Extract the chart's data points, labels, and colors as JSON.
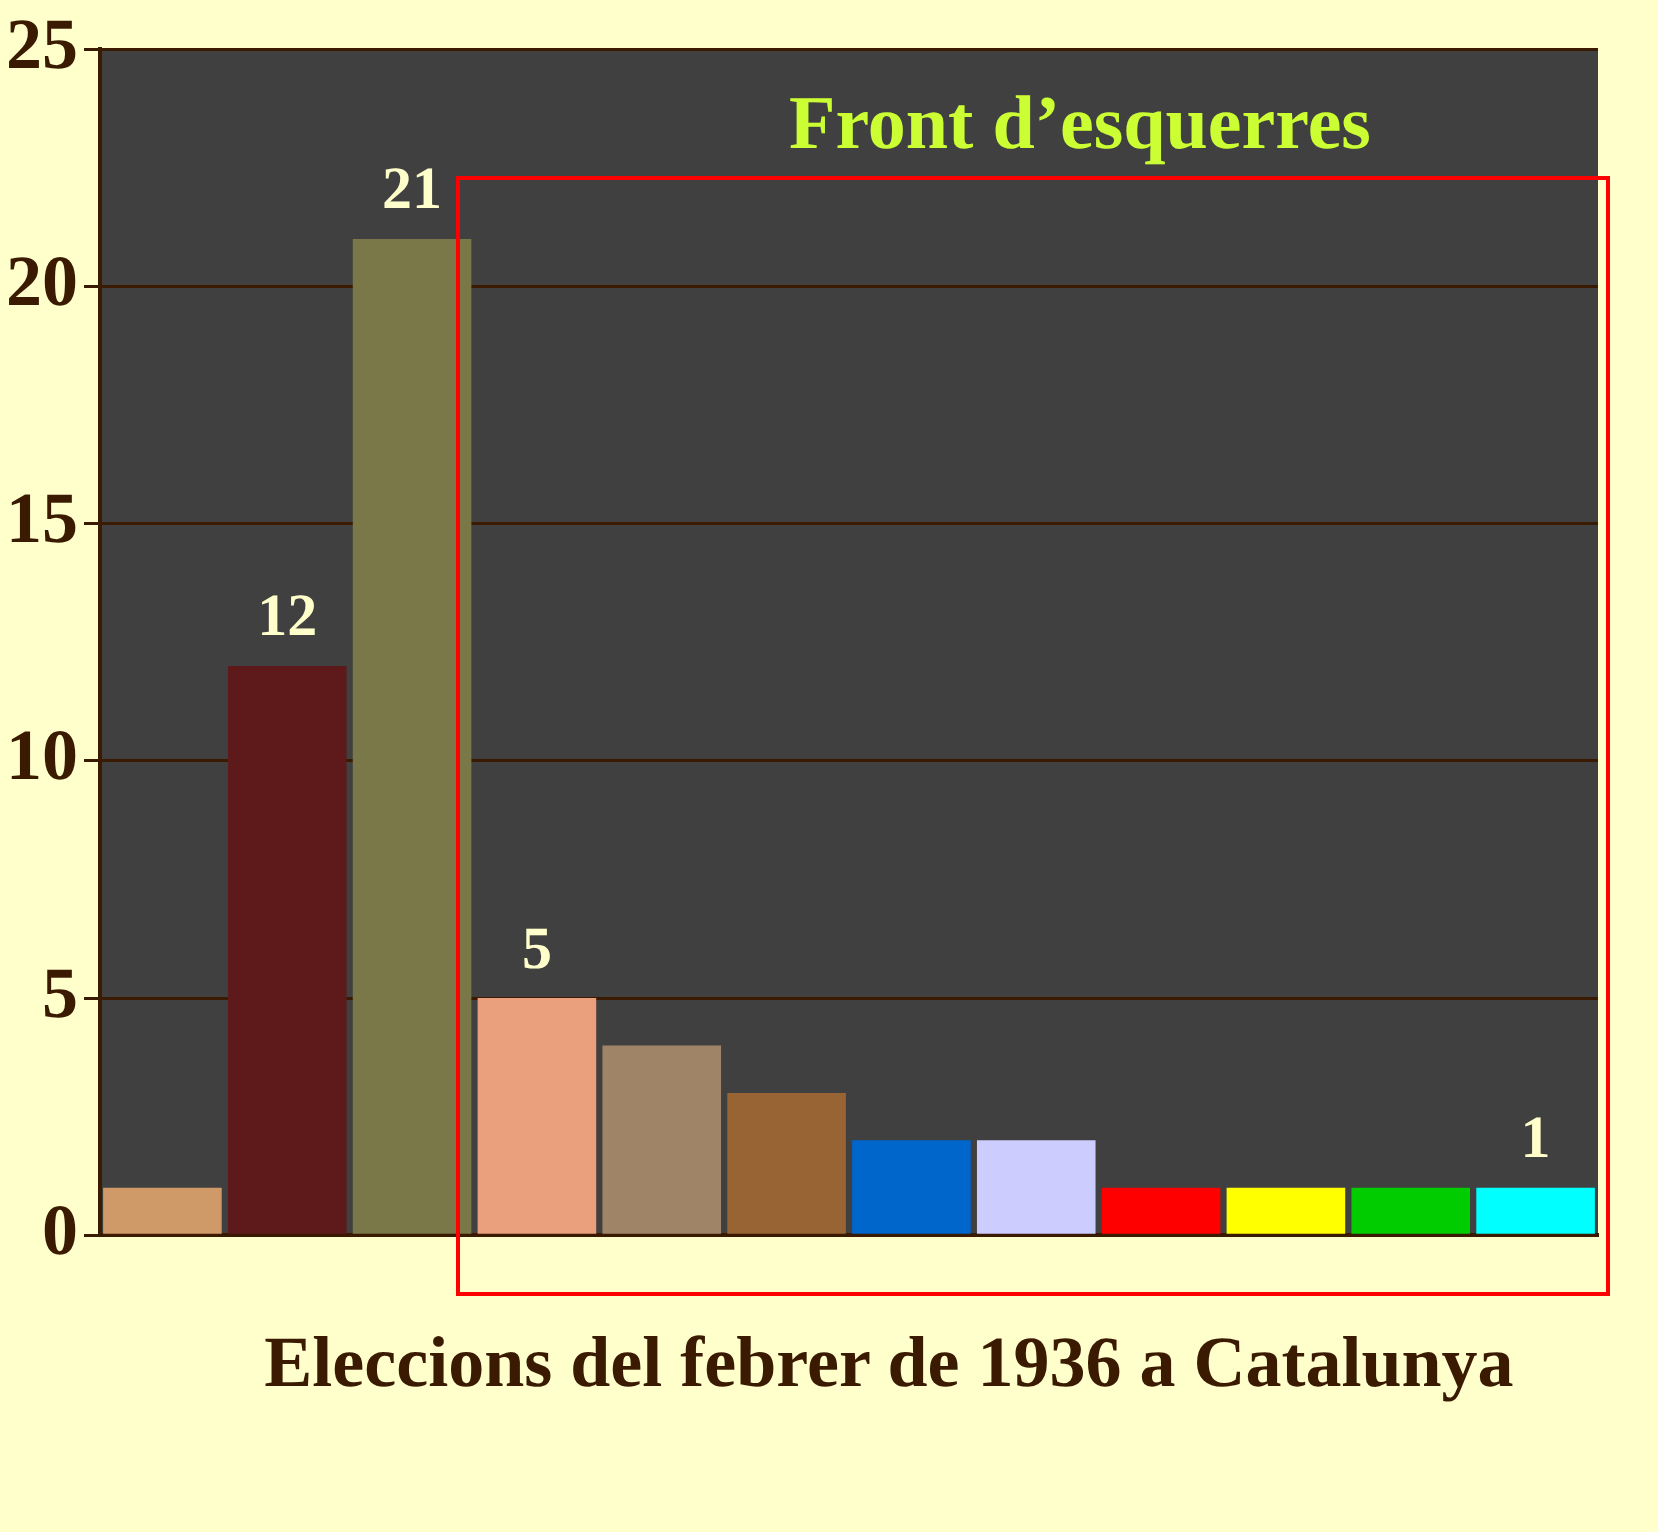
{
  "chart_data": {
    "type": "bar",
    "xlabel": "Eleccions del febrer de 1936 a Catalunya",
    "annotations": [
      "Front d’esquerres"
    ],
    "categories": [
      null,
      null,
      null,
      null,
      null,
      null,
      null,
      null,
      null,
      null,
      null,
      null
    ],
    "values": [
      1,
      12,
      21,
      5,
      4,
      3,
      2,
      2,
      1,
      1,
      1,
      1
    ],
    "colors": [
      "#d09a68",
      "#5e1a1a",
      "#7a7848",
      "#eaa07c",
      "#a08468",
      "#986434",
      "#0066cc",
      "#ccccff",
      "#ff0000",
      "#ffff00",
      "#00cc00",
      "#00ffff"
    ],
    "value_labels": [
      null,
      "12",
      "21",
      "5",
      null,
      null,
      null,
      null,
      null,
      null,
      null,
      "1"
    ],
    "ylim": [
      0,
      25
    ],
    "yticks": [
      0,
      5,
      10,
      15,
      20,
      25
    ],
    "grid": "y",
    "legend": false
  }
}
